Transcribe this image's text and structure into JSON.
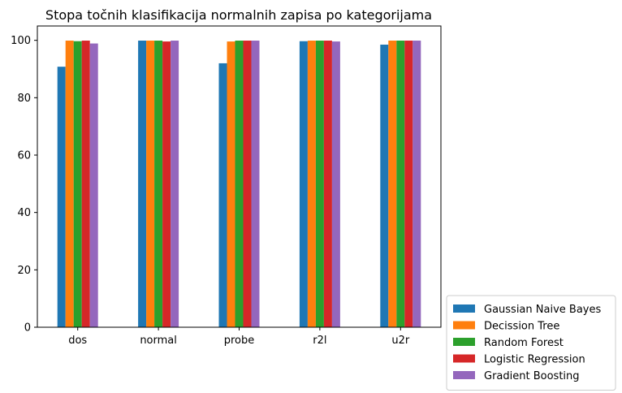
{
  "chart_data": {
    "type": "bar",
    "title": "Stopa točnih klasifikacija normalnih zapisa po kategorijama",
    "xlabel": "",
    "ylabel": "",
    "categories": [
      "dos",
      "normal",
      "probe",
      "r2l",
      "u2r"
    ],
    "ylim": [
      0,
      105
    ],
    "yticks": [
      0,
      20,
      40,
      60,
      80,
      100
    ],
    "grid": false,
    "legend_position": "lower-right outside",
    "series": [
      {
        "name": "Gaussian Naive Bayes",
        "color": "#1f77b4",
        "values": [
          90.8,
          99.9,
          92.0,
          99.7,
          98.5
        ]
      },
      {
        "name": "Decission Tree",
        "color": "#ff7f0e",
        "values": [
          99.9,
          99.9,
          99.6,
          99.9,
          99.9
        ]
      },
      {
        "name": "Random Forest",
        "color": "#2ca02c",
        "values": [
          99.7,
          99.9,
          99.9,
          99.9,
          99.9
        ]
      },
      {
        "name": "Logistic Regression",
        "color": "#d62728",
        "values": [
          99.9,
          99.6,
          99.9,
          99.9,
          99.9
        ]
      },
      {
        "name": "Gradient Boosting",
        "color": "#9467bd",
        "values": [
          98.9,
          99.9,
          99.9,
          99.6,
          99.9
        ]
      }
    ]
  }
}
